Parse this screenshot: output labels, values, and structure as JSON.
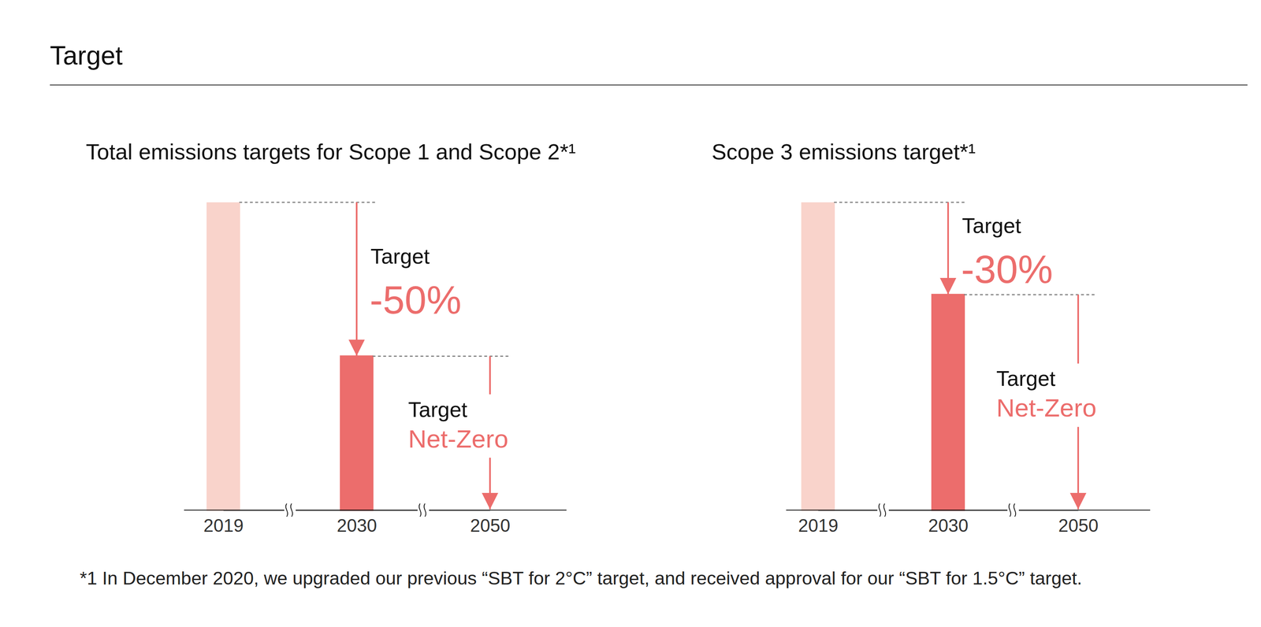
{
  "header": {
    "title": "Target"
  },
  "chart_data": [
    {
      "type": "bar",
      "title": "Total emissions targets for Scope 1 and Scope 2*¹",
      "categories": [
        "2019",
        "2030",
        "2050"
      ],
      "values": [
        100,
        50,
        0
      ],
      "colors": [
        "#f9d3cb",
        "#ec6d6c",
        "#ec6d6c"
      ],
      "ylim": [
        0,
        100
      ],
      "tick_labels": "x",
      "annotations": [
        {
          "label": "Target",
          "text": "-50%"
        },
        {
          "label": "Target",
          "text": "Net-Zero"
        }
      ]
    },
    {
      "type": "bar",
      "title": "Scope 3 emissions target*¹",
      "categories": [
        "2019",
        "2030",
        "2050"
      ],
      "values": [
        100,
        70,
        0
      ],
      "colors": [
        "#f9d3cb",
        "#ec6d6c",
        "#ec6d6c"
      ],
      "ylim": [
        0,
        100
      ],
      "tick_labels": "x",
      "annotations": [
        {
          "label": "Target",
          "text": "-30%"
        },
        {
          "label": "Target",
          "text": "Net-Zero"
        }
      ]
    }
  ],
  "footnote": "*1 In December 2020, we upgraded our previous “SBT for 2°C” target, and received approval for our “SBT for 1.5°C” target."
}
